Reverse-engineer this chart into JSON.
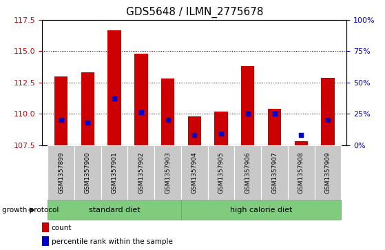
{
  "title": "GDS5648 / ILMN_2775678",
  "samples": [
    "GSM1357899",
    "GSM1357900",
    "GSM1357901",
    "GSM1357902",
    "GSM1357903",
    "GSM1357904",
    "GSM1357905",
    "GSM1357906",
    "GSM1357907",
    "GSM1357908",
    "GSM1357909"
  ],
  "count_values": [
    113.0,
    113.3,
    116.7,
    114.8,
    112.8,
    109.8,
    110.2,
    113.8,
    110.4,
    107.8,
    112.9
  ],
  "percentile_values": [
    20,
    18,
    37,
    26,
    20,
    8,
    9,
    25,
    25,
    8,
    20
  ],
  "ymin": 107.5,
  "ymax": 117.5,
  "y2min": 0,
  "y2max": 100,
  "yticks": [
    107.5,
    110.0,
    112.5,
    115.0,
    117.5
  ],
  "y2ticks": [
    0,
    25,
    50,
    75,
    100
  ],
  "y2ticklabels": [
    "0%",
    "25%",
    "50%",
    "75%",
    "100%"
  ],
  "bar_color": "#cc0000",
  "dot_color": "#0000cc",
  "bar_width": 0.5,
  "group1_label": "standard diet",
  "group2_label": "high calorie diet",
  "group1_indices": [
    0,
    1,
    2,
    3,
    4
  ],
  "group2_indices": [
    5,
    6,
    7,
    8,
    9,
    10
  ],
  "group_label_prefix": "growth protocol",
  "group_bg_color": "#7fcc7f",
  "sample_bg_color": "#c8c8c8",
  "legend_count_label": "count",
  "legend_pct_label": "percentile rank within the sample",
  "title_fontsize": 11,
  "axis_label_color_left": "#cc0000",
  "axis_label_color_right": "#0000cc",
  "grid_color": "#000000",
  "fig_width": 5.59,
  "fig_height": 3.63
}
